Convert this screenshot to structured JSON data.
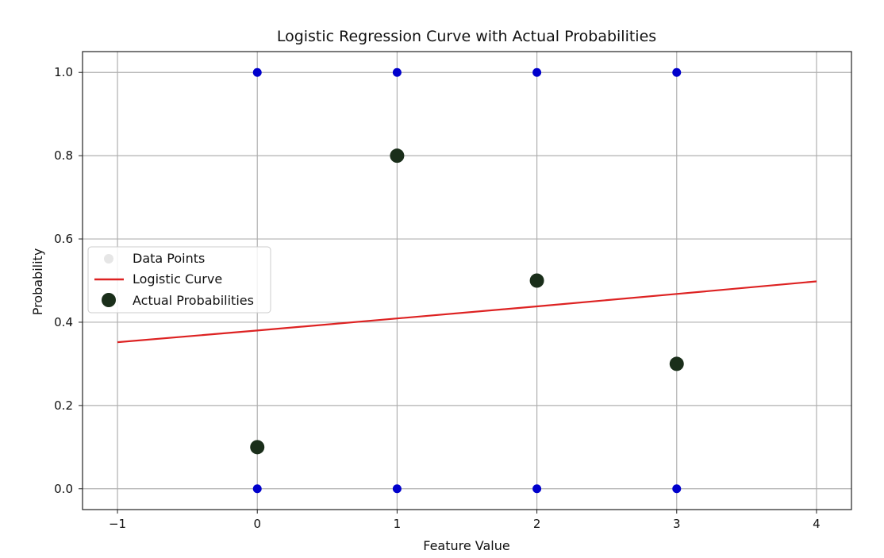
{
  "chart_data": {
    "type": "scatter",
    "title": "Logistic Regression Curve with Actual Probabilities",
    "xlabel": "Feature Value",
    "ylabel": "Probability",
    "xlim": [
      -1.25,
      4.25
    ],
    "ylim": [
      -0.05,
      1.05
    ],
    "x_ticks": [
      -1,
      0,
      1,
      2,
      3,
      4
    ],
    "x_tick_labels": [
      "−1",
      "0",
      "1",
      "2",
      "3",
      "4"
    ],
    "y_ticks": [
      0.0,
      0.2,
      0.4,
      0.6,
      0.8,
      1.0
    ],
    "y_tick_labels": [
      "0.0",
      "0.2",
      "0.4",
      "0.6",
      "0.8",
      "1.0"
    ],
    "grid": true,
    "legend_position": "center-left",
    "series": [
      {
        "name": "Data Points",
        "kind": "scatter",
        "color": "#0000cc",
        "points": [
          [
            0,
            0
          ],
          [
            0,
            1
          ],
          [
            1,
            0
          ],
          [
            1,
            1
          ],
          [
            2,
            0
          ],
          [
            2,
            1
          ],
          [
            3,
            0
          ],
          [
            3,
            1
          ]
        ]
      },
      {
        "name": "Logistic Curve",
        "kind": "line",
        "color": "#dd2222",
        "x": [
          -1,
          0,
          1,
          2,
          3,
          4
        ],
        "y": [
          0.352,
          0.38,
          0.409,
          0.438,
          0.468,
          0.498
        ]
      },
      {
        "name": "Actual Probabilities",
        "kind": "scatter",
        "color": "#1a2e1a",
        "points": [
          [
            0,
            0.1
          ],
          [
            1,
            0.8
          ],
          [
            2,
            0.5
          ],
          [
            3,
            0.3
          ]
        ]
      }
    ],
    "legend_marker_colors": {
      "data_points": "#e6e6e6",
      "logistic_curve": "#dd2222",
      "actual_probabilities": "#1a2e1a"
    }
  }
}
